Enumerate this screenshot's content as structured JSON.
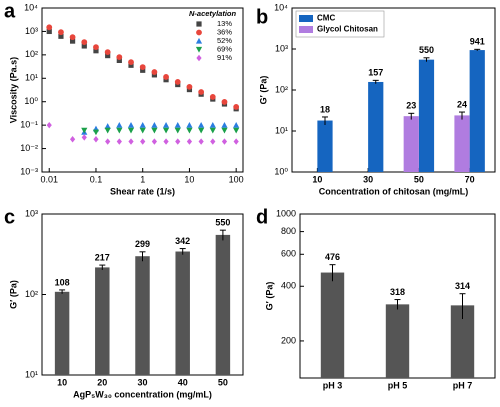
{
  "chart_data": [
    {
      "type": "scatter",
      "label": "a",
      "xlabel": "Shear rate (1/s)",
      "ylabel": "Viscosity (Pa.s)",
      "xlog": true,
      "ylog": true,
      "xlim": [
        0.007,
        140
      ],
      "ylim": [
        0.001,
        10000
      ],
      "xticks": [
        0.01,
        0.1,
        1,
        10,
        100
      ],
      "yticks": [
        {
          "value": 0.001,
          "label": "10⁻³"
        },
        {
          "value": 0.01,
          "label": "10⁻²"
        },
        {
          "value": 0.1,
          "label": "10⁻¹"
        },
        {
          "value": 1,
          "label": "10⁰"
        },
        {
          "value": 10,
          "label": "10¹"
        },
        {
          "value": 100,
          "label": "10²"
        },
        {
          "value": 1000,
          "label": "10³"
        },
        {
          "value": 10000,
          "label": "10⁴"
        }
      ],
      "legend_title": "N-acetylation",
      "legend": "upper right",
      "x": [
        0.01,
        0.0178,
        0.0316,
        0.0562,
        0.1,
        0.178,
        0.316,
        0.562,
        1,
        1.78,
        3.16,
        5.62,
        10,
        17.8,
        31.6,
        56.2,
        100
      ],
      "series": [
        {
          "name": "13%",
          "color": "#444444",
          "marker": "square",
          "values": [
            1000,
            622,
            387,
            240,
            150,
            93,
            58,
            36,
            22,
            14,
            8.7,
            5.4,
            3.3,
            2.1,
            1.3,
            0.8,
            0.5
          ]
        },
        {
          "name": "36%",
          "color": "#e8463c",
          "marker": "circle",
          "values": [
            1500,
            930,
            570,
            350,
            214,
            131,
            80,
            49,
            30,
            18.5,
            11.4,
            7,
            4.3,
            2.6,
            1.6,
            0.98,
            0.6
          ]
        },
        {
          "name": "52%",
          "color": "#2a7de1",
          "marker": "triangle-up",
          "values": [
            null,
            null,
            null,
            0.05,
            0.07,
            0.09,
            0.1,
            0.1,
            0.1,
            0.1,
            0.1,
            0.1,
            0.1,
            0.1,
            0.1,
            0.1,
            0.1
          ]
        },
        {
          "name": "69%",
          "color": "#1ba04a",
          "marker": "triangle-down",
          "values": [
            null,
            null,
            null,
            0.06,
            0.05,
            0.06,
            0.06,
            0.06,
            0.06,
            0.06,
            0.06,
            0.06,
            0.06,
            0.06,
            0.06,
            0.06,
            0.06
          ]
        },
        {
          "name": "91%",
          "color": "#d060e0",
          "marker": "diamond",
          "values": [
            0.1,
            null,
            0.025,
            0.03,
            0.025,
            0.02,
            0.02,
            0.02,
            0.02,
            0.02,
            0.02,
            0.02,
            0.02,
            0.02,
            0.02,
            0.02,
            0.02
          ]
        }
      ]
    },
    {
      "type": "bar",
      "label": "b",
      "xlabel": "Concentration of chitosan (mg/mL)",
      "ylabel": "G′ (Pa)",
      "ylog": true,
      "ylim": [
        1,
        10000
      ],
      "yticks": [
        {
          "value": 1,
          "label": "10⁰"
        },
        {
          "value": 10,
          "label": "10¹"
        },
        {
          "value": 100,
          "label": "10²"
        },
        {
          "value": 1000,
          "label": "10³"
        },
        {
          "value": 10000,
          "label": "10⁴"
        }
      ],
      "legend": "upper left",
      "categories": [
        "10",
        "30",
        "50",
        "70"
      ],
      "series": [
        {
          "name": "CMC",
          "color": "#1565c0",
          "values": [
            18,
            157,
            550,
            941
          ],
          "errors": [
            4,
            15,
            60,
            40
          ]
        },
        {
          "name": "Glycol Chitosan",
          "color": "#b07ce0",
          "values": [
            null,
            null,
            23,
            24
          ],
          "errors": [
            null,
            null,
            4,
            5
          ]
        }
      ]
    },
    {
      "type": "bar",
      "label": "c",
      "xlabel": "AgP₅W₃₀ concentration (mg/mL)",
      "ylabel": "G′ (Pa)",
      "ylog": true,
      "ylim": [
        10,
        1000
      ],
      "yticks": [
        {
          "value": 10,
          "label": "10¹"
        },
        {
          "value": 100,
          "label": "10²"
        },
        {
          "value": 1000,
          "label": "10³"
        }
      ],
      "categories": [
        "10",
        "20",
        "30",
        "40",
        "50"
      ],
      "series": [
        {
          "color": "#555555",
          "values": [
            108,
            217,
            299,
            342,
            550
          ],
          "errors": [
            6,
            15,
            40,
            30,
            80
          ]
        }
      ]
    },
    {
      "type": "bar",
      "label": "d",
      "ylabel": "G′ (Pa)",
      "ylog": true,
      "ylim": [
        125,
        1000
      ],
      "yticks": [
        200,
        400,
        600,
        800,
        1000
      ],
      "categories": [
        "pH 3",
        "pH 5",
        "pH 7"
      ],
      "series": [
        {
          "color": "#555555",
          "values": [
            476,
            318,
            314
          ],
          "errors": [
            50,
            20,
            50
          ]
        }
      ]
    }
  ]
}
